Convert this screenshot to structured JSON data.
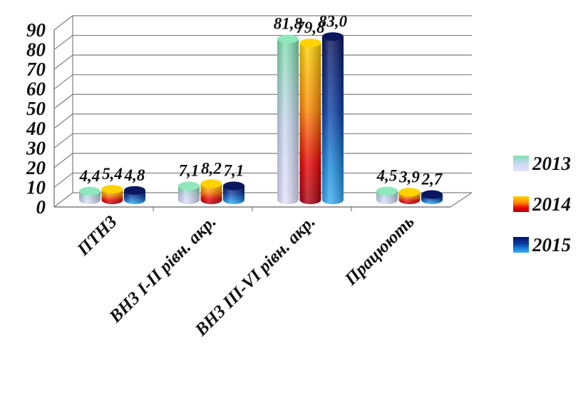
{
  "chart_data": {
    "type": "bar",
    "categories": [
      "ПТНЗ",
      "ВНЗ I-II рівн. акр.",
      "ВНЗ III-VI рівн. акр.",
      "Працюють"
    ],
    "series": [
      {
        "name": "2013",
        "values": [
          4.4,
          7.1,
          81.8,
          4.5
        ],
        "labels": [
          "4,4",
          "7,1",
          "81,8",
          "4,5"
        ]
      },
      {
        "name": "2014",
        "values": [
          5.4,
          8.2,
          79.8,
          3.9
        ],
        "labels": [
          "5,4",
          "8,2",
          "79,8",
          "3,9"
        ]
      },
      {
        "name": "2015",
        "values": [
          4.8,
          7.1,
          83.0,
          2.7
        ],
        "labels": [
          "4,8",
          "7,1",
          "83,0",
          "2,7"
        ]
      }
    ],
    "yticks": [
      "0",
      "10",
      "20",
      "30",
      "40",
      "50",
      "60",
      "70",
      "80",
      "90"
    ],
    "ylim": [
      0,
      90
    ],
    "grid": true,
    "legend_position": "right"
  },
  "colors": {
    "2013": "#7fe0b0",
    "2014": "#f0c000",
    "2015": "#0a1a6e",
    "grid": "#7f7f7f"
  }
}
